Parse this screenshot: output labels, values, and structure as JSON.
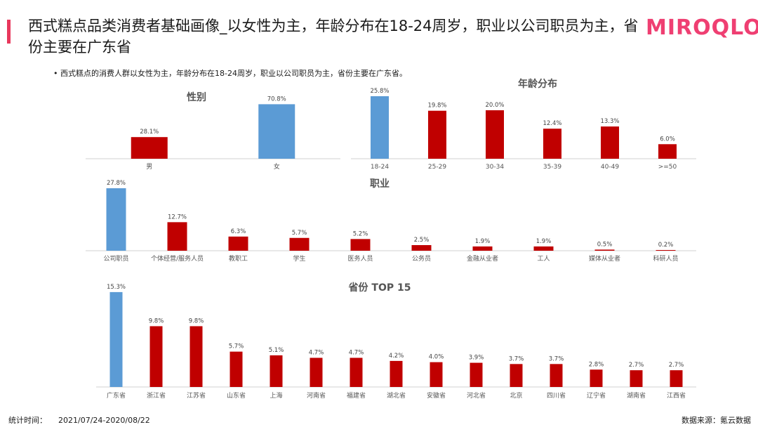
{
  "header": {
    "title": "西式糕点品类消费者基础画像_以女性为主，年龄分布在18-24周岁，职业以公司职员为主，省份主要在广东省",
    "logo": "MIROQLO",
    "subtitle": "• 西式糕点的消费人群以女性为主，年龄分布在18-24周岁，职业以公司职员为主，省份主要在广东省。"
  },
  "footer": {
    "period_label": "统计时间：",
    "period_value": "2021/07/24-2020/08/22",
    "source": "数据来源：氪云数据"
  },
  "colors": {
    "highlight": "#5b9bd5",
    "normal": "#c00000",
    "accent": "#e8385c",
    "logo": "#ef3f72"
  },
  "chart_data": [
    {
      "id": "gender",
      "type": "bar",
      "title": "性别",
      "categories": [
        "男",
        "女"
      ],
      "values": [
        28.1,
        70.8
      ],
      "value_labels": [
        "28.1%",
        "70.8%"
      ],
      "highlight_index": 1
    },
    {
      "id": "age",
      "type": "bar",
      "title": "年龄分布",
      "categories": [
        "18-24",
        "25-29",
        "30-34",
        "35-39",
        "40-49",
        ">=50"
      ],
      "values": [
        25.8,
        19.8,
        20.0,
        12.4,
        13.3,
        6.0
      ],
      "value_labels": [
        "25.8%",
        "19.8%",
        "20.0%",
        "12.4%",
        "13.3%",
        "6.0%"
      ],
      "highlight_index": 0
    },
    {
      "id": "occupation",
      "type": "bar",
      "title": "职业",
      "categories": [
        "公司职员",
        "个体经营/服务人员",
        "教职工",
        "学生",
        "医务人员",
        "公务员",
        "金融从业者",
        "工人",
        "媒体从业者",
        "科研人员"
      ],
      "values": [
        27.8,
        12.7,
        6.3,
        5.7,
        5.2,
        2.5,
        1.9,
        1.9,
        0.5,
        0.2
      ],
      "value_labels": [
        "27.8%",
        "12.7%",
        "6.3%",
        "5.7%",
        "5.2%",
        "2.5%",
        "1.9%",
        "1.9%",
        "0.5%",
        "0.2%"
      ],
      "highlight_index": 0
    },
    {
      "id": "province",
      "type": "bar",
      "title": "省份 TOP 15",
      "categories": [
        "广东省",
        "浙江省",
        "江苏省",
        "山东省",
        "上海",
        "河南省",
        "福建省",
        "湖北省",
        "安徽省",
        "河北省",
        "北京",
        "四川省",
        "辽宁省",
        "湖南省",
        "江西省"
      ],
      "values": [
        15.3,
        9.8,
        9.8,
        5.7,
        5.1,
        4.7,
        4.7,
        4.2,
        4.0,
        3.9,
        3.7,
        3.7,
        2.8,
        2.7,
        2.7
      ],
      "value_labels": [
        "15.3%",
        "9.8%",
        "9.8%",
        "5.7%",
        "5.1%",
        "4.7%",
        "4.7%",
        "4.2%",
        "4.0%",
        "3.9%",
        "3.7%",
        "3.7%",
        "2.8%",
        "2.7%",
        "2.7%"
      ],
      "highlight_index": 0
    }
  ]
}
